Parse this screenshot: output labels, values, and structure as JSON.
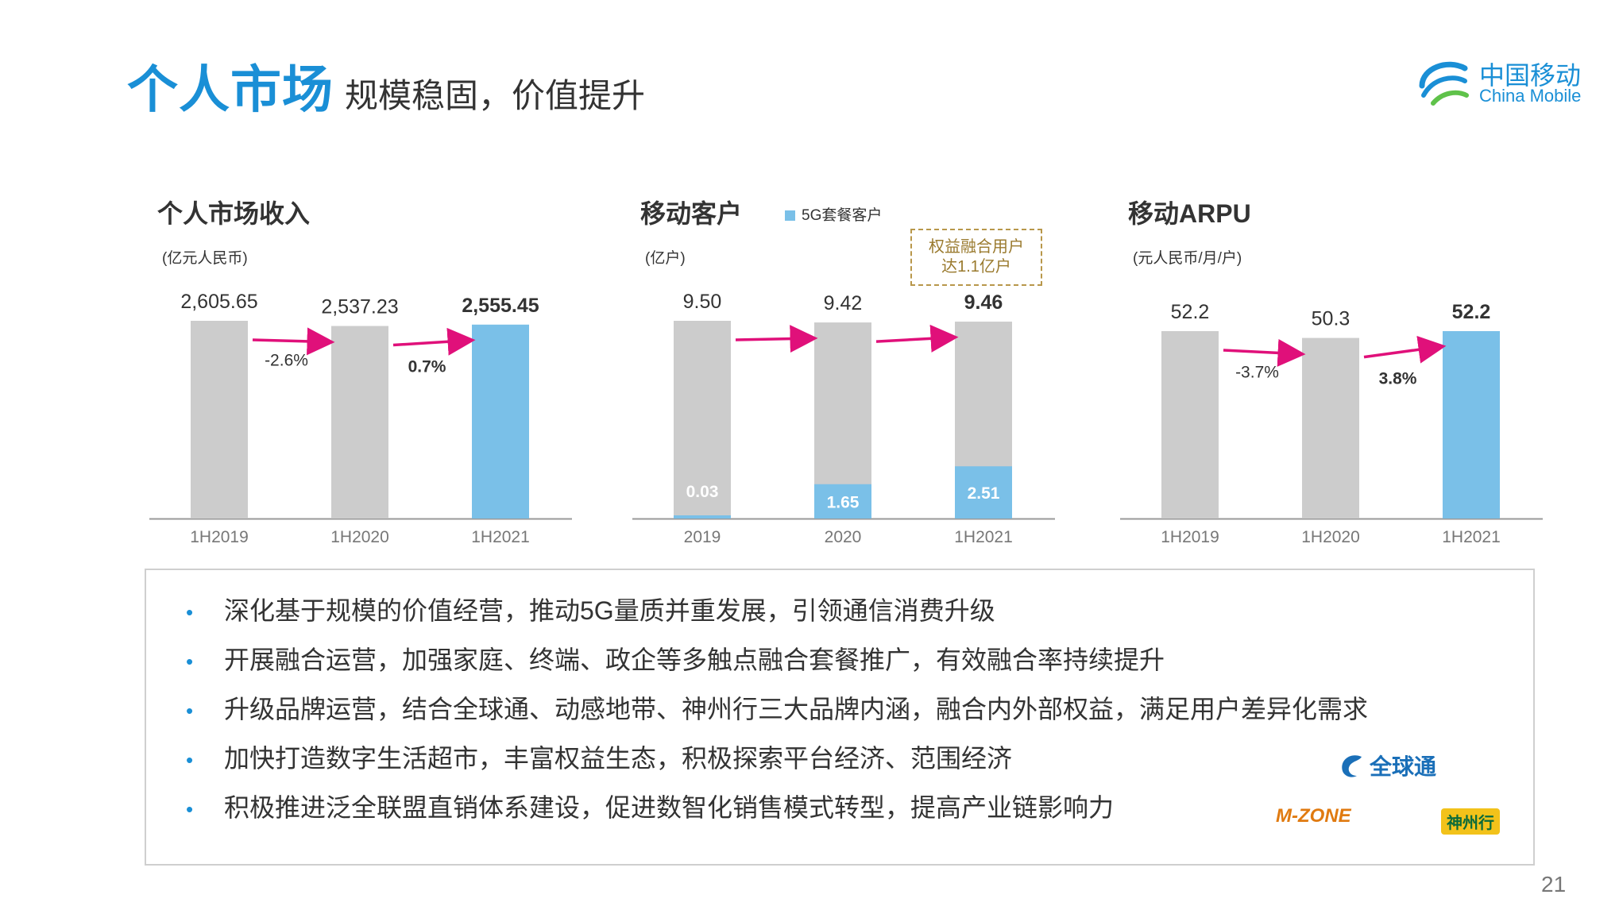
{
  "header": {
    "title_main": "个人市场",
    "title_sub": "规模稳固，价值提升"
  },
  "logo": {
    "cn": "中国移动",
    "en": "China Mobile"
  },
  "chart_data": [
    {
      "type": "bar",
      "title": "个人市场收入",
      "unit": "(亿元人民币)",
      "categories": [
        "1H2019",
        "1H2020",
        "1H2021"
      ],
      "values": [
        2605.65,
        2537.23,
        2555.45
      ],
      "value_labels": [
        "2,605.65",
        "2,537.23",
        "2,555.45"
      ],
      "growth": [
        "-2.6%",
        "0.7%"
      ],
      "ylim": [
        0,
        2605.65
      ],
      "colors": {
        "past": "#cccccc",
        "current": "#7ac0e8",
        "arrow": "#e0107a"
      }
    },
    {
      "type": "bar",
      "title": "移动客户",
      "unit": "(亿户)",
      "legend": "5G套餐客户",
      "categories": [
        "2019",
        "2020",
        "1H2021"
      ],
      "values": [
        9.5,
        9.42,
        9.46
      ],
      "value_labels": [
        "9.50",
        "9.42",
        "9.46"
      ],
      "sub_values": [
        0.03,
        1.65,
        2.51
      ],
      "sub_labels": [
        "0.03",
        "1.65",
        "2.51"
      ],
      "callout": [
        "权益融合用户",
        "达1.1亿户"
      ],
      "ylim": [
        0,
        9.5
      ],
      "colors": {
        "past": "#cccccc",
        "sub": "#7ac0e8",
        "arrow": "#e0107a"
      }
    },
    {
      "type": "bar",
      "title": "移动ARPU",
      "unit": "(元人民币/月/户)",
      "categories": [
        "1H2019",
        "1H2020",
        "1H2021"
      ],
      "values": [
        52.2,
        50.3,
        52.2
      ],
      "value_labels": [
        "52.2",
        "50.3",
        "52.2"
      ],
      "growth": [
        "-3.7%",
        "3.8%"
      ],
      "ylim": [
        0,
        52.2
      ],
      "colors": {
        "past": "#cccccc",
        "current": "#7ac0e8",
        "arrow": "#e0107a"
      }
    }
  ],
  "summary": {
    "bullet_symbol": "•",
    "bullets": [
      "深化基于规模的价值经营，推动5G量质并重发展，引领通信消费升级",
      "开展融合运营，加强家庭、终端、政企等多触点融合套餐推广，有效融合率持续提升",
      "升级品牌运营，结合全球通、动感地带、神州行三大品牌内涵，融合内外部权益，满足用户差异化需求",
      "加快打造数字生活超市，丰富权益生态，积极探索平台经济、范围经济",
      "积极推进泛全联盟直销体系建设，促进数智化销售模式转型，提高产业链影响力"
    ],
    "brands": {
      "globe": "全球通",
      "mzone": "M-ZONE",
      "shenzhou": "神州行"
    }
  },
  "page_number": "21"
}
